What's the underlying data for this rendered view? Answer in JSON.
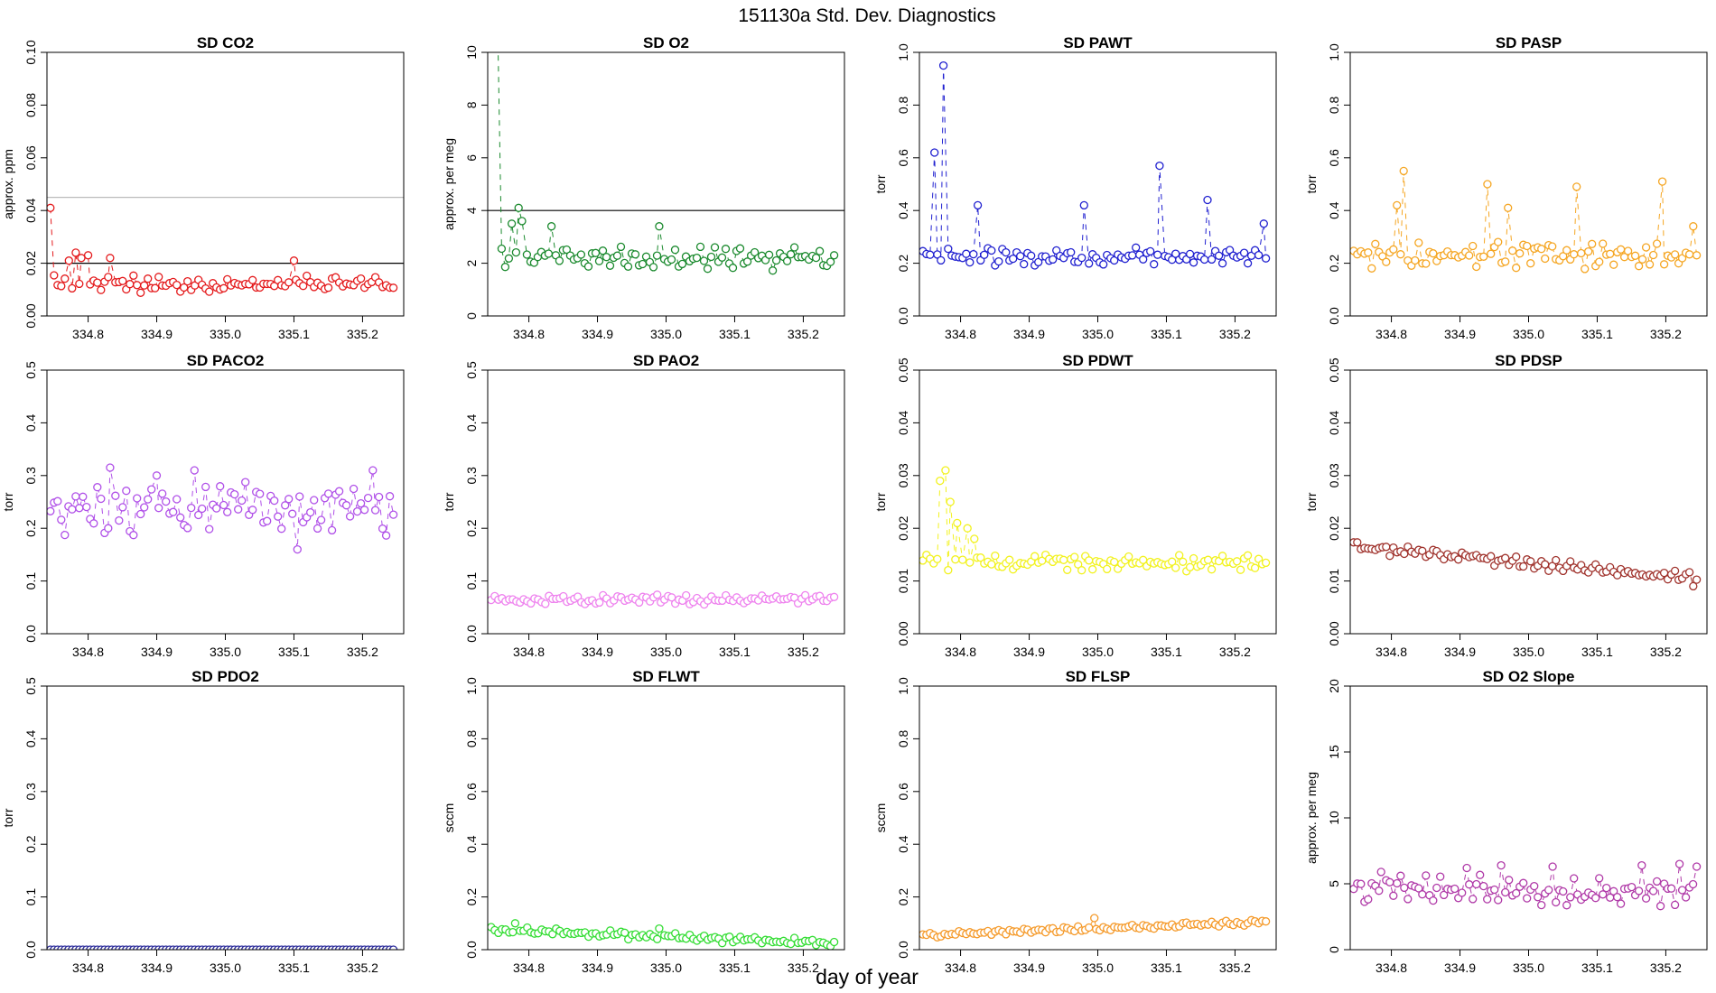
{
  "figure": {
    "title": "151130a   Std. Dev. Diagnostics",
    "xlabel": "day of year"
  },
  "chart_data": [
    {
      "type": "scatter",
      "title": "SD CO2",
      "ylabel": "approx. ppm",
      "color": "#e41a1c",
      "xlim": [
        334.74,
        335.26
      ],
      "ylim": [
        0,
        0.1
      ],
      "xticks": [
        "334.8",
        "334.9",
        "335.0",
        "335.1",
        "335.2"
      ],
      "yticks": [
        "0.00",
        "0.02",
        "0.04",
        "0.06",
        "0.08",
        "0.10"
      ],
      "hlines": [
        {
          "y": 0.02,
          "color": "#000000"
        },
        {
          "y": 0.045,
          "color": "#bbbbbb"
        }
      ],
      "series": [
        {
          "mode": "sine",
          "base": 0.012,
          "amp": 0.0025,
          "start": 334.745,
          "end": 335.245,
          "n": 96,
          "spikes": [
            [
              334.745,
              0.041
            ],
            [
              334.772,
              0.021
            ],
            [
              334.782,
              0.024
            ],
            [
              334.79,
              0.022
            ],
            [
              334.8,
              0.023
            ],
            [
              334.832,
              0.022
            ],
            [
              335.1,
              0.021
            ]
          ]
        }
      ]
    },
    {
      "type": "scatter",
      "title": "SD O2",
      "ylabel": "approx. per meg",
      "color": "#1b8a2e",
      "xlim": [
        334.74,
        335.26
      ],
      "ylim": [
        0,
        10
      ],
      "xticks": [
        "334.8",
        "334.9",
        "335.0",
        "335.1",
        "335.2"
      ],
      "yticks": [
        "0",
        "2",
        "4",
        "6",
        "8",
        "10"
      ],
      "hlines": [
        {
          "y": 4,
          "color": "#000000"
        }
      ],
      "series": [
        {
          "mode": "sine",
          "base": 2.2,
          "amp": 0.35,
          "start": 334.755,
          "end": 335.245,
          "n": 94,
          "spikes": [
            [
              334.755,
              10.3
            ],
            [
              334.775,
              3.5
            ],
            [
              334.785,
              4.1
            ],
            [
              334.79,
              3.6
            ],
            [
              334.833,
              3.4
            ],
            [
              334.99,
              3.4
            ]
          ]
        }
      ]
    },
    {
      "type": "scatter",
      "title": "SD PAWT",
      "ylabel": "torr",
      "color": "#2020d0",
      "xlim": [
        334.74,
        335.26
      ],
      "ylim": [
        0,
        1.0
      ],
      "xticks": [
        "334.8",
        "334.9",
        "335.0",
        "335.1",
        "335.2"
      ],
      "yticks": [
        "0.0",
        "0.2",
        "0.4",
        "0.6",
        "0.8",
        "1.0"
      ],
      "hlines": [],
      "series": [
        {
          "mode": "sine",
          "base": 0.225,
          "amp": 0.025,
          "start": 334.745,
          "end": 335.245,
          "n": 96,
          "spikes": [
            [
              334.762,
              0.62
            ],
            [
              334.775,
              0.95
            ],
            [
              334.825,
              0.42
            ],
            [
              334.98,
              0.42
            ],
            [
              335.09,
              0.57
            ],
            [
              335.16,
              0.44
            ],
            [
              335.242,
              0.35
            ]
          ]
        }
      ]
    },
    {
      "type": "scatter",
      "title": "SD PASP",
      "ylabel": "torr",
      "color": "#f5a623",
      "xlim": [
        334.74,
        335.26
      ],
      "ylim": [
        0,
        1.0
      ],
      "xticks": [
        "334.8",
        "334.9",
        "335.0",
        "335.1",
        "335.2"
      ],
      "yticks": [
        "0.0",
        "0.2",
        "0.4",
        "0.6",
        "0.8",
        "1.0"
      ],
      "hlines": [],
      "series": [
        {
          "mode": "sine",
          "base": 0.23,
          "amp": 0.04,
          "start": 334.745,
          "end": 335.245,
          "n": 96,
          "spikes": [
            [
              334.808,
              0.42
            ],
            [
              334.818,
              0.55
            ],
            [
              334.94,
              0.5
            ],
            [
              334.97,
              0.41
            ],
            [
              335.07,
              0.49
            ],
            [
              335.195,
              0.51
            ],
            [
              335.24,
              0.34
            ]
          ]
        }
      ]
    },
    {
      "type": "scatter",
      "title": "SD PACO2",
      "ylabel": "torr",
      "color": "#b050e8",
      "xlim": [
        334.74,
        335.26
      ],
      "ylim": [
        0,
        0.5
      ],
      "xticks": [
        "334.8",
        "334.9",
        "335.0",
        "335.1",
        "335.2"
      ],
      "yticks": [
        "0.0",
        "0.1",
        "0.2",
        "0.3",
        "0.4",
        "0.5"
      ],
      "hlines": [],
      "series": [
        {
          "mode": "sine",
          "base": 0.235,
          "amp": 0.04,
          "start": 334.745,
          "end": 335.245,
          "n": 96,
          "spikes": [
            [
              334.832,
              0.315
            ],
            [
              334.9,
              0.3
            ],
            [
              334.955,
              0.31
            ],
            [
              335.105,
              0.16
            ],
            [
              335.215,
              0.31
            ]
          ]
        }
      ]
    },
    {
      "type": "scatter",
      "title": "SD PAO2",
      "ylabel": "torr",
      "color": "#ee82ee",
      "xlim": [
        334.74,
        335.26
      ],
      "ylim": [
        0,
        0.5
      ],
      "xticks": [
        "334.8",
        "334.9",
        "335.0",
        "335.1",
        "335.2"
      ],
      "yticks": [
        "0.0",
        "0.1",
        "0.2",
        "0.3",
        "0.4",
        "0.5"
      ],
      "hlines": [],
      "series": [
        {
          "mode": "sine",
          "base": 0.065,
          "amp": 0.007,
          "start": 334.745,
          "end": 335.245,
          "n": 96,
          "spikes": []
        }
      ]
    },
    {
      "type": "scatter",
      "title": "SD PDWT",
      "ylabel": "torr",
      "color": "#f2f21e",
      "xlim": [
        334.74,
        335.26
      ],
      "ylim": [
        0,
        0.05
      ],
      "xticks": [
        "334.8",
        "334.9",
        "335.0",
        "335.1",
        "335.2"
      ],
      "yticks": [
        "0.00",
        "0.01",
        "0.02",
        "0.03",
        "0.04",
        "0.05"
      ],
      "hlines": [],
      "series": [
        {
          "mode": "sine",
          "base": 0.0135,
          "amp": 0.0012,
          "start": 334.745,
          "end": 335.245,
          "n": 96,
          "spikes": [
            [
              334.77,
              0.029
            ],
            [
              334.778,
              0.031
            ],
            [
              334.785,
              0.025
            ],
            [
              334.795,
              0.021
            ],
            [
              334.81,
              0.02
            ],
            [
              334.82,
              0.018
            ]
          ]
        }
      ]
    },
    {
      "type": "scatter",
      "title": "SD PDSP",
      "ylabel": "torr",
      "color": "#a0332d",
      "xlim": [
        334.74,
        335.26
      ],
      "ylim": [
        0,
        0.05
      ],
      "xticks": [
        "334.8",
        "334.9",
        "335.0",
        "335.1",
        "335.2"
      ],
      "yticks": [
        "0.00",
        "0.01",
        "0.02",
        "0.03",
        "0.04",
        "0.05"
      ],
      "hlines": [],
      "series": [
        {
          "mode": "trend",
          "y0": 0.0165,
          "y1": 0.0105,
          "amp": 0.0009,
          "start": 334.745,
          "end": 335.245,
          "n": 96,
          "spikes": [
            [
              335.24,
              0.009
            ]
          ]
        }
      ]
    },
    {
      "type": "scatter",
      "title": "SD PDO2",
      "ylabel": "torr",
      "color": "#2a2a9a",
      "xlim": [
        334.74,
        335.26
      ],
      "ylim": [
        0,
        0.5
      ],
      "xticks": [
        "334.8",
        "334.9",
        "335.0",
        "335.1",
        "335.2"
      ],
      "yticks": [
        "0.0",
        "0.1",
        "0.2",
        "0.3",
        "0.4",
        "0.5"
      ],
      "hlines": [],
      "series": [
        {
          "mode": "sine",
          "base": 0.0,
          "amp": 0.0,
          "start": 334.745,
          "end": 335.245,
          "n": 96,
          "spikes": []
        }
      ]
    },
    {
      "type": "scatter",
      "title": "SD FLWT",
      "ylabel": "sccm",
      "color": "#33dd33",
      "xlim": [
        334.74,
        335.26
      ],
      "ylim": [
        0,
        1.0
      ],
      "xticks": [
        "334.8",
        "334.9",
        "335.0",
        "335.1",
        "335.2"
      ],
      "yticks": [
        "0.0",
        "0.2",
        "0.4",
        "0.6",
        "0.8",
        "1.0"
      ],
      "hlines": [],
      "series": [
        {
          "mode": "trend",
          "y0": 0.075,
          "y1": 0.025,
          "amp": 0.012,
          "start": 334.745,
          "end": 335.245,
          "n": 96,
          "spikes": [
            [
              334.99,
              0.08
            ],
            [
              334.78,
              0.1
            ]
          ]
        }
      ]
    },
    {
      "type": "scatter",
      "title": "SD FLSP",
      "ylabel": "sccm",
      "color": "#f59a2a",
      "xlim": [
        334.74,
        335.26
      ],
      "ylim": [
        0,
        1.0
      ],
      "xticks": [
        "334.8",
        "334.9",
        "335.0",
        "335.1",
        "335.2"
      ],
      "yticks": [
        "0.0",
        "0.2",
        "0.4",
        "0.6",
        "0.8",
        "1.0"
      ],
      "hlines": [],
      "series": [
        {
          "mode": "trend",
          "y0": 0.055,
          "y1": 0.105,
          "amp": 0.008,
          "start": 334.745,
          "end": 335.245,
          "n": 96,
          "spikes": [
            [
              334.995,
              0.12
            ]
          ]
        }
      ]
    },
    {
      "type": "scatter",
      "title": "SD O2 Slope",
      "ylabel": "approx. per meg",
      "color": "#b03aa8",
      "xlim": [
        334.74,
        335.26
      ],
      "ylim": [
        0,
        20
      ],
      "xticks": [
        "334.8",
        "334.9",
        "335.0",
        "335.1",
        "335.2"
      ],
      "yticks": [
        "0",
        "5",
        "10",
        "15",
        "20"
      ],
      "hlines": [],
      "series": [
        {
          "mode": "sine",
          "base": 4.5,
          "amp": 0.9,
          "start": 334.745,
          "end": 335.245,
          "n": 96,
          "spikes": [
            [
              334.785,
              5.9
            ],
            [
              334.91,
              6.2
            ],
            [
              334.96,
              6.4
            ],
            [
              335.035,
              6.3
            ],
            [
              335.165,
              6.4
            ],
            [
              335.22,
              6.5
            ],
            [
              335.245,
              6.3
            ]
          ]
        }
      ]
    }
  ]
}
